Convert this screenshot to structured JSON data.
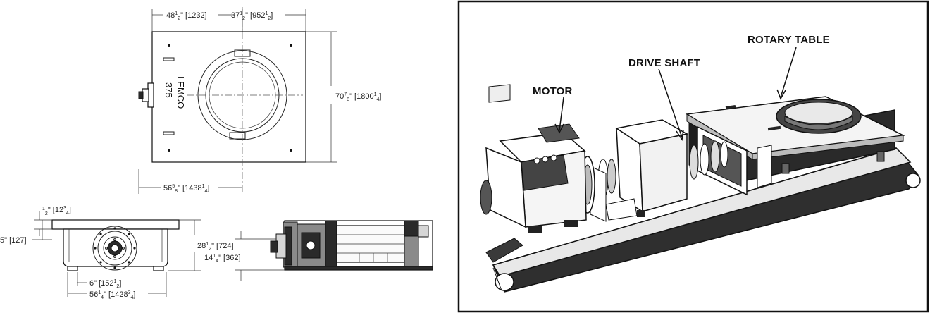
{
  "top_view": {
    "brand": "LEMCO",
    "model": "375",
    "dim_left_width": {
      "whole": "48",
      "num": "1",
      "den": "2",
      "mm": "[1232]"
    },
    "dim_right_width": {
      "whole": "37",
      "num": "1",
      "den": "2",
      "mm": "[952",
      "mm_frac_num": "1",
      "mm_frac_den": "2",
      "mm_close": "]"
    },
    "dim_height": {
      "whole": "70",
      "num": "7",
      "den": "8",
      "mm": "[1800",
      "mm_frac_num": "1",
      "mm_frac_den": "4",
      "mm_close": "]"
    },
    "dim_offset": {
      "whole": "56",
      "num": "5",
      "den": "8",
      "mm": "[1438",
      "mm_frac_num": "1",
      "mm_frac_den": "4",
      "mm_close": "]"
    }
  },
  "front_view": {
    "dim_top_plate": {
      "num": "1",
      "den": "2",
      "mm": "[12",
      "mm_frac_num": "3",
      "mm_frac_den": "4",
      "mm_close": "]"
    },
    "dim_base": {
      "text": "5\" [127]"
    },
    "dim_height": {
      "whole": "28",
      "num": "1",
      "den": "2",
      "mm": "[724]"
    },
    "dim_foot": {
      "text": "6\" [152",
      "mm_frac_num": "1",
      "mm_frac_den": "2",
      "mm_close": "]"
    },
    "dim_width": {
      "whole": "56",
      "num": "1",
      "den": "4",
      "mm": "[1428",
      "mm_frac_num": "3",
      "mm_frac_den": "4",
      "mm_close": "]"
    }
  },
  "section_view": {
    "dim_shaft": {
      "whole": "14",
      "num": "1",
      "den": "4",
      "mm": "[362]"
    }
  },
  "illustration": {
    "labels": {
      "motor": "MOTOR",
      "drive_shaft": "DRIVE SHAFT",
      "rotary_table": "ROTARY TABLE"
    }
  }
}
